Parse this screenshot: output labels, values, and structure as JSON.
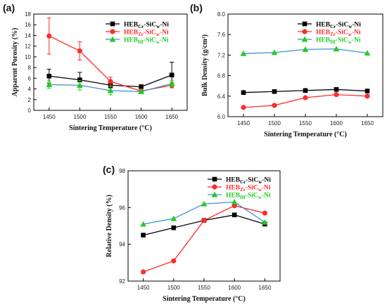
{
  "colors": {
    "cr": "#000000",
    "zr": "#ff2a2a",
    "hf_line": "#3a8fd6",
    "hf_marker": "#22cc22"
  },
  "chart_data": [
    {
      "type": "line",
      "panel": "(a)",
      "xlabel": "Sintering Temperature (°C)",
      "ylabel": "Apparent Porosity (%)",
      "x": [
        1450,
        1500,
        1550,
        1600,
        1650
      ],
      "xlim": [
        1425,
        1675
      ],
      "ylim": [
        0,
        18
      ],
      "yticks": [
        "0",
        "2",
        "4",
        "6",
        "8",
        "10",
        "12",
        "14",
        "16",
        "18"
      ],
      "legend_position": "top-right",
      "series": [
        {
          "key": "cr",
          "legend": {
            "base": "HEB",
            "sub": "Cr",
            "rest": "-SiC",
            "sub2": "w",
            "tail": "-Ni"
          },
          "marker": "square",
          "color_key": "cr",
          "values": [
            6.4,
            5.7,
            4.7,
            4.4,
            6.6
          ],
          "errors": [
            1.3,
            1.4,
            0.5,
            0.4,
            2.4
          ]
        },
        {
          "key": "zr",
          "legend": {
            "base": "HEB",
            "sub": "Zr",
            "rest": "-SiC",
            "sub2": "w",
            "tail": "-Ni"
          },
          "marker": "circle",
          "color_key": "zr",
          "values": [
            13.9,
            11.1,
            5.4,
            3.6,
            4.7
          ],
          "errors": [
            3.4,
            1.7,
            0.8,
            0.4,
            0.5
          ]
        },
        {
          "key": "hf",
          "legend": {
            "base": "HEB",
            "sub": "Hf",
            "rest": "-SiC",
            "sub2": "w",
            "tail": "-Ni"
          },
          "marker": "triangle",
          "color_key": "hf_line",
          "marker_color_key": "hf_marker",
          "values": [
            4.8,
            4.7,
            3.7,
            3.5,
            5.0
          ],
          "errors": [
            0.7,
            0.9,
            0.8,
            0.3,
            0.5
          ]
        }
      ]
    },
    {
      "type": "line",
      "panel": "(b)",
      "xlabel": "Sintering Temperature (°C)",
      "ylabel": "Bulk Density (g/cm³)",
      "x": [
        1450,
        1500,
        1550,
        1600,
        1650
      ],
      "xlim": [
        1425,
        1675
      ],
      "ylim": [
        6.0,
        8.0
      ],
      "yticks": [
        "6.0",
        "6.4",
        "6.8",
        "7.2",
        "7.6",
        "8.0"
      ],
      "legend_position": "top-right",
      "series": [
        {
          "key": "cr",
          "legend": {
            "base": "HEB",
            "sub": "Cr",
            "rest": "-SiC",
            "sub2": "w",
            "tail": "-Ni"
          },
          "marker": "square",
          "color_key": "cr",
          "values": [
            6.47,
            6.49,
            6.51,
            6.53,
            6.5
          ]
        },
        {
          "key": "zr",
          "legend": {
            "base": "HEB",
            "sub": "Zr",
            "rest": "-SiC",
            "sub2": "w",
            "tail": "-Ni"
          },
          "marker": "circle",
          "color_key": "zr",
          "values": [
            6.18,
            6.22,
            6.37,
            6.43,
            6.4
          ]
        },
        {
          "key": "hf",
          "legend": {
            "base": "HEB",
            "sub": "Hf",
            "rest": "-SiC",
            "sub2": "w",
            "tail": "-Ni"
          },
          "marker": "triangle",
          "color_key": "hf_line",
          "marker_color_key": "hf_marker",
          "values": [
            7.23,
            7.25,
            7.31,
            7.32,
            7.24
          ]
        }
      ]
    },
    {
      "type": "line",
      "panel": "(c)",
      "xlabel": "Sintering Temperature (°C)",
      "ylabel": "Relative Density (%)",
      "x": [
        1450,
        1500,
        1550,
        1600,
        1650
      ],
      "xlim": [
        1425,
        1675
      ],
      "ylim": [
        92,
        98
      ],
      "yticks": [
        "92",
        "94",
        "96",
        "98"
      ],
      "legend_position": "top-right",
      "series": [
        {
          "key": "cr",
          "legend": {
            "base": "HEB",
            "sub": "Cr",
            "rest": "-SiC",
            "sub2": "w",
            "tail": "-Ni"
          },
          "marker": "square",
          "color_key": "cr",
          "values": [
            94.5,
            94.9,
            95.3,
            95.6,
            95.1
          ]
        },
        {
          "key": "zr",
          "legend": {
            "base": "HEB",
            "sub": "Zr",
            "rest": "-SiC",
            "sub2": "w",
            "tail": "-Ni"
          },
          "marker": "circle",
          "color_key": "zr",
          "values": [
            92.5,
            93.1,
            95.3,
            96.1,
            95.7
          ]
        },
        {
          "key": "hf",
          "legend": {
            "base": "HEB",
            "sub": "Hf",
            "rest": "-SiC",
            "sub2": "w",
            "tail": "-Ni"
          },
          "marker": "triangle",
          "color_key": "hf_line",
          "marker_color_key": "hf_marker",
          "values": [
            95.1,
            95.4,
            96.2,
            96.3,
            95.2
          ]
        }
      ]
    }
  ]
}
